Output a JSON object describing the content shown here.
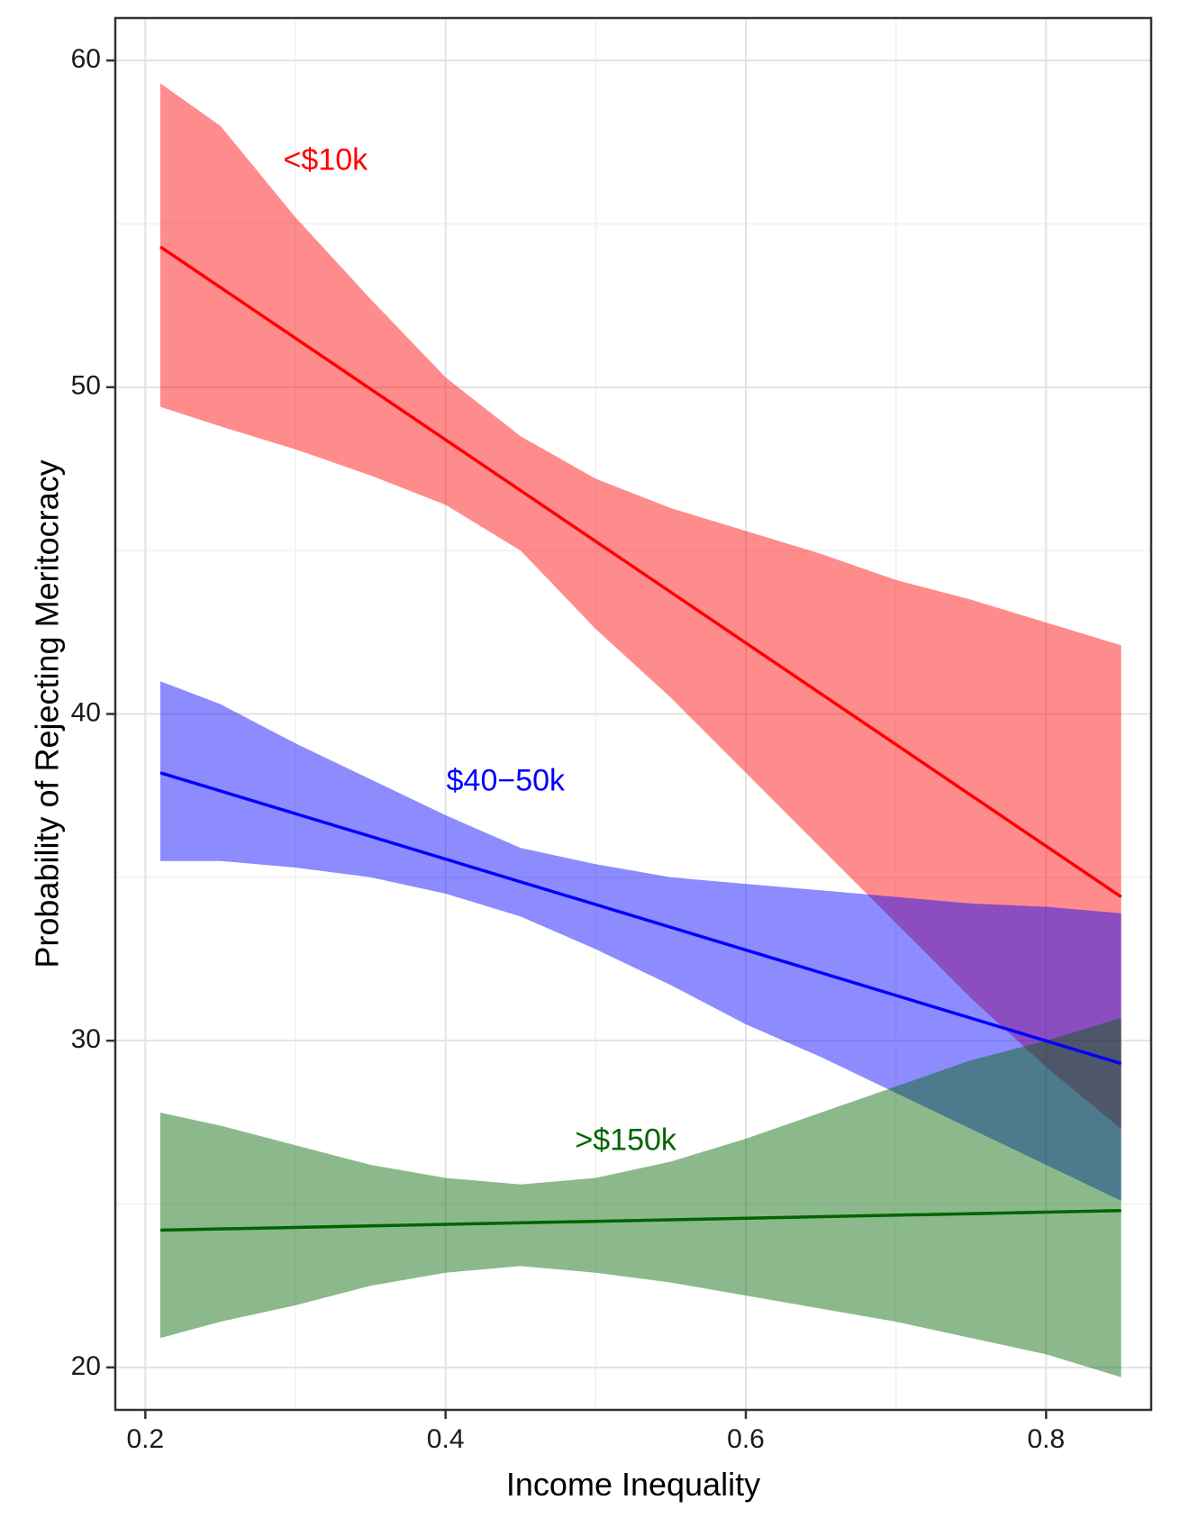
{
  "chart_data": {
    "type": "line",
    "xlabel": "Income Inequality",
    "ylabel": "Probability of Rejecting Meritocracy",
    "xlim": [
      0.18,
      0.87
    ],
    "ylim": [
      18.7,
      61.3
    ],
    "x_ticks": [
      0.2,
      0.4,
      0.6,
      0.8
    ],
    "x_tick_labels": [
      "0.2",
      "0.4",
      "0.6",
      "0.8"
    ],
    "y_ticks": [
      20,
      30,
      40,
      50,
      60
    ],
    "y_tick_labels": [
      "20",
      "30",
      "40",
      "50",
      "60"
    ],
    "grid": true,
    "legend": "none",
    "series": [
      {
        "name": "<$10k",
        "color": "#ff0000",
        "fill_color": "#ff0000",
        "x": [
          0.21,
          0.85
        ],
        "y": [
          54.3,
          34.4
        ],
        "band_x": [
          0.21,
          0.25,
          0.3,
          0.35,
          0.4,
          0.45,
          0.5,
          0.55,
          0.6,
          0.65,
          0.7,
          0.75,
          0.8,
          0.85
        ],
        "band_upper": [
          59.3,
          58.0,
          55.2,
          52.7,
          50.3,
          48.5,
          47.2,
          46.3,
          45.6,
          44.9,
          44.1,
          43.5,
          42.8,
          42.1
        ],
        "band_lower": [
          49.4,
          48.8,
          48.1,
          47.3,
          46.4,
          45.0,
          42.6,
          40.5,
          38.2,
          35.9,
          33.6,
          31.3,
          29.2,
          27.3
        ],
        "label": "<$10k",
        "label_x": 0.32,
        "label_y": 56.9
      },
      {
        "name": "$40-50k",
        "color": "#0000ff",
        "fill_color": "#0000ff",
        "x": [
          0.21,
          0.85
        ],
        "y": [
          38.2,
          29.3
        ],
        "band_x": [
          0.21,
          0.25,
          0.3,
          0.35,
          0.4,
          0.45,
          0.5,
          0.55,
          0.6,
          0.65,
          0.7,
          0.75,
          0.8,
          0.85
        ],
        "band_upper": [
          41.0,
          40.3,
          39.1,
          38.0,
          36.9,
          35.9,
          35.4,
          35.0,
          34.8,
          34.6,
          34.4,
          34.2,
          34.1,
          33.9
        ],
        "band_lower": [
          35.5,
          35.5,
          35.3,
          35.0,
          34.5,
          33.8,
          32.8,
          31.7,
          30.5,
          29.5,
          28.4,
          27.3,
          26.2,
          25.1
        ],
        "label": "$40−50k",
        "label_x": 0.44,
        "label_y": 37.9
      },
      {
        "name": ">$150k",
        "color": "#006400",
        "fill_color": "#006400",
        "x": [
          0.21,
          0.85
        ],
        "y": [
          24.2,
          24.8
        ],
        "band_x": [
          0.21,
          0.25,
          0.3,
          0.35,
          0.4,
          0.45,
          0.5,
          0.55,
          0.6,
          0.65,
          0.7,
          0.75,
          0.8,
          0.85
        ],
        "band_upper": [
          27.8,
          27.4,
          26.8,
          26.2,
          25.8,
          25.6,
          25.8,
          26.3,
          27.0,
          27.8,
          28.6,
          29.4,
          30.0,
          30.7
        ],
        "band_lower": [
          20.9,
          21.4,
          21.9,
          22.5,
          22.9,
          23.1,
          22.9,
          22.6,
          22.2,
          21.8,
          21.4,
          20.9,
          20.4,
          19.7
        ],
        "label": ">$150k",
        "label_x": 0.52,
        "label_y": 26.9
      }
    ]
  }
}
